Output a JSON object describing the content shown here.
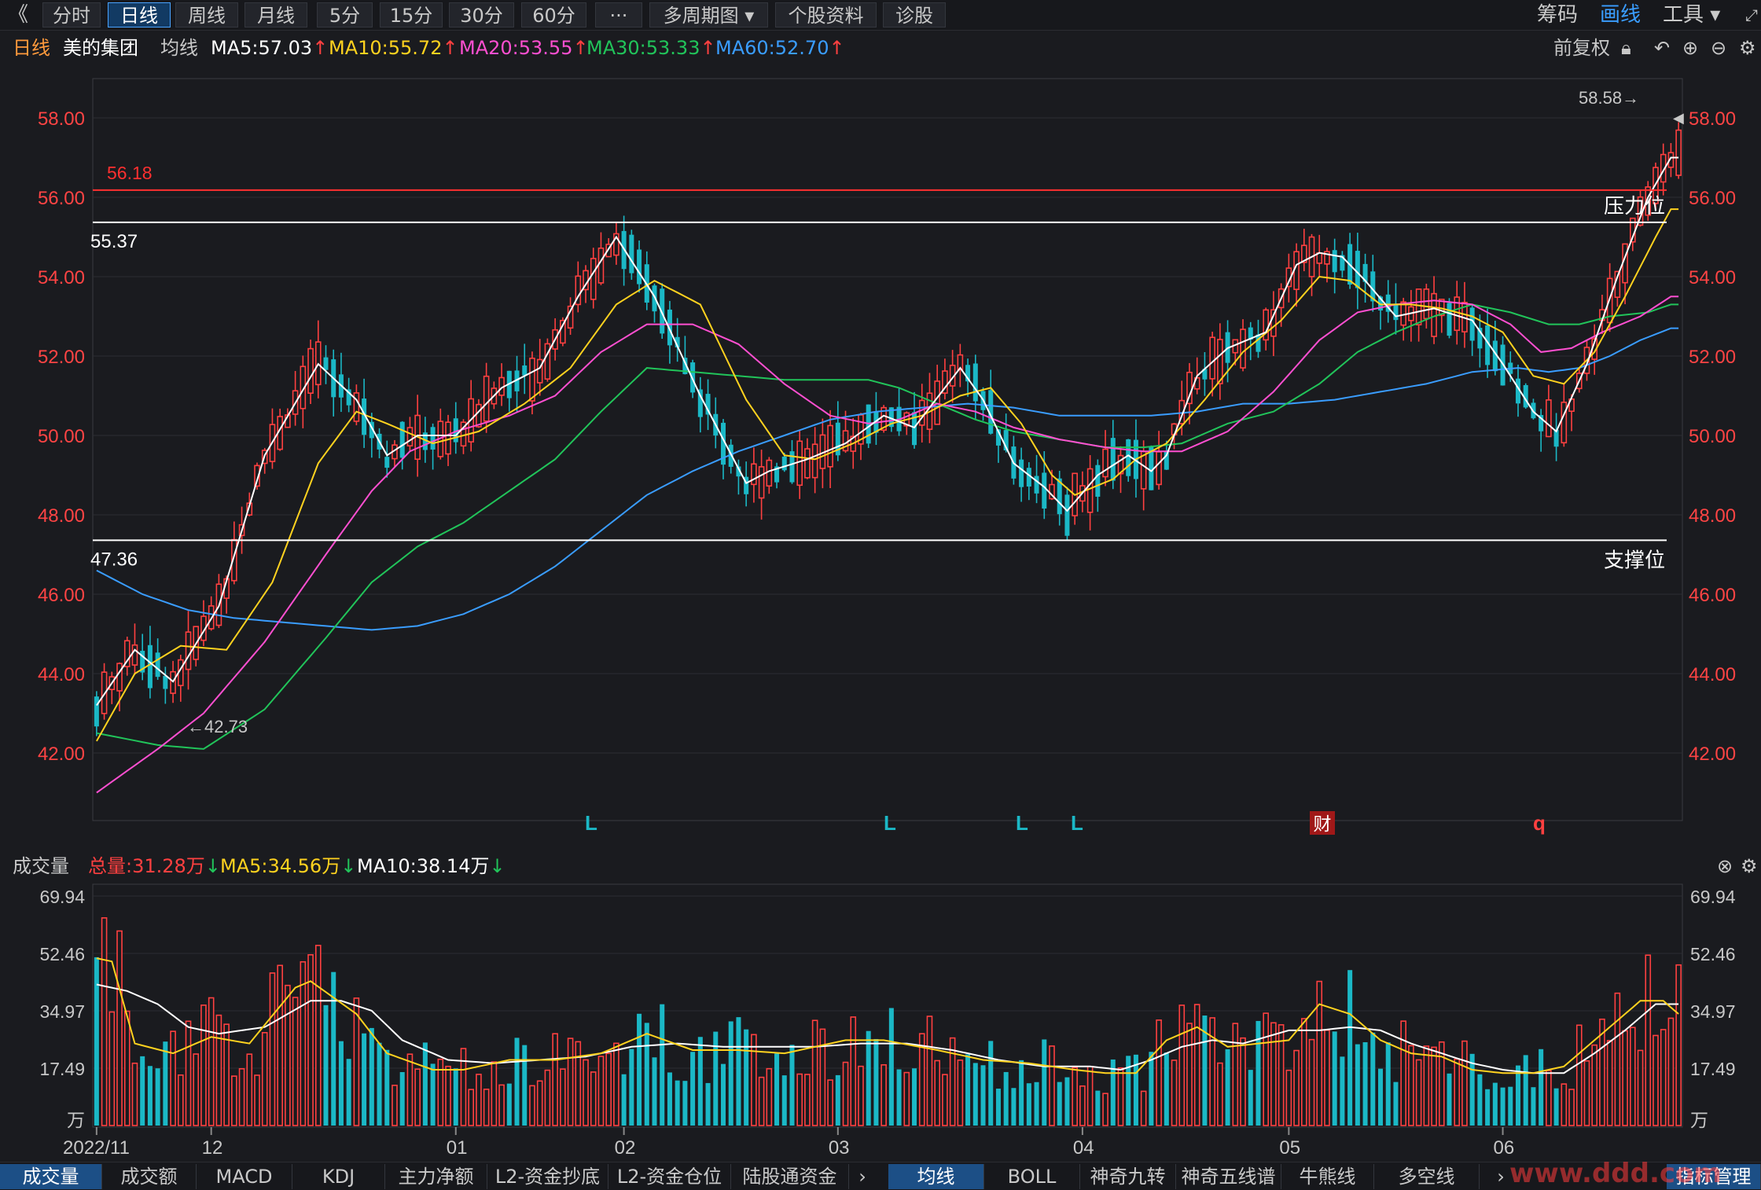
{
  "toolbar": {
    "back": "《",
    "tabs": [
      "分时",
      "日线",
      "周线",
      "月线",
      "5分",
      "15分",
      "30分",
      "60分",
      "···",
      "多周期图 ▾",
      "个股资料",
      "诊股"
    ],
    "active_tab": 1,
    "right_items": [
      "筹码",
      "画线",
      "工具 ▾"
    ]
  },
  "info": {
    "period": "日线",
    "stock_name": "美的集团",
    "indicator": "均线",
    "ma5": "MA5:57.03",
    "ma10": "MA10:55.72",
    "ma20": "MA20:53.55",
    "ma30": "MA30:53.33",
    "ma60": "MA60:52.70",
    "arrow_up": "↑",
    "adjust": "前复权"
  },
  "volume_info": {
    "label": "成交量",
    "total": "总量:31.28万",
    "ma5": "MA5:34.56万",
    "ma10": "MA10:38.14万",
    "arrow_down": "↓"
  },
  "bottom_tabs_left": [
    "成交量",
    "成交额",
    "MACD",
    "KDJ",
    "主力净额",
    "L2-资金抄底",
    "L2-资金仓位",
    "陆股通资金"
  ],
  "bottom_tabs_right": [
    "均线",
    "BOLL",
    "神奇九转",
    "神奇五线谱",
    "牛熊线",
    "多空线"
  ],
  "bottom_right": "指标管理",
  "watermark": "www.ddd.com",
  "colors": {
    "up": "#ff4040",
    "down": "#1bb8c6",
    "ma5": "#ffffff",
    "ma10": "#ffd21f",
    "ma20": "#ff4fd1",
    "ma30": "#21c45a",
    "ma60": "#3a9dff",
    "axis_text": "#ff4444",
    "resistance": "#ff3030",
    "support": "#ffffff"
  },
  "chart_data": {
    "type": "candlestick",
    "price_axis": {
      "ticks": [
        "58.00",
        "56.00",
        "54.00",
        "52.00",
        "50.00",
        "48.00",
        "46.00",
        "44.00",
        "42.00"
      ],
      "range": [
        40.6,
        58.8
      ]
    },
    "x_labels": [
      {
        "label": "2022/11",
        "index": 0
      },
      {
        "label": "12",
        "index": 15
      },
      {
        "label": "01",
        "index": 47
      },
      {
        "label": "02",
        "index": 69
      },
      {
        "label": "03",
        "index": 97
      },
      {
        "label": "04",
        "index": 129
      },
      {
        "label": "05",
        "index": 156
      },
      {
        "label": "06",
        "index": 184
      }
    ],
    "annotations": {
      "high": "58.58→",
      "low": "←42.73",
      "line_5618": "56.18",
      "line_5537": "55.37",
      "line_4736": "47.36",
      "resistance_label": "压力位",
      "support_label": "支撑位",
      "markers": [
        "L",
        "L",
        "L",
        "L",
        "财",
        "q"
      ]
    },
    "hlines": [
      56.18,
      55.37,
      47.36
    ],
    "volume_axis": {
      "ticks": [
        "69.94",
        "52.46",
        "34.97",
        "17.49",
        "万"
      ],
      "max": 72
    },
    "ma_keypoints": {
      "ma5": [
        [
          0,
          43.2
        ],
        [
          5,
          44.6
        ],
        [
          10,
          43.8
        ],
        [
          16,
          45.7
        ],
        [
          22,
          49.5
        ],
        [
          29,
          51.8
        ],
        [
          34,
          50.9
        ],
        [
          38,
          49.5
        ],
        [
          42,
          50.0
        ],
        [
          47,
          50.0
        ],
        [
          53,
          51.2
        ],
        [
          58,
          51.7
        ],
        [
          63,
          53.5
        ],
        [
          68,
          55.0
        ],
        [
          73,
          53.5
        ],
        [
          79,
          51.0
        ],
        [
          85,
          48.8
        ],
        [
          88,
          49.1
        ],
        [
          93,
          49.4
        ],
        [
          98,
          49.8
        ],
        [
          103,
          50.5
        ],
        [
          107,
          50.2
        ],
        [
          113,
          51.7
        ],
        [
          116,
          50.9
        ],
        [
          120,
          49.3
        ],
        [
          124,
          48.7
        ],
        [
          127,
          48.1
        ],
        [
          131,
          49.0
        ],
        [
          135,
          49.5
        ],
        [
          138,
          49.1
        ],
        [
          140,
          49.5
        ],
        [
          144,
          51.5
        ],
        [
          148,
          52.2
        ],
        [
          153,
          52.6
        ],
        [
          157,
          54.3
        ],
        [
          160,
          54.6
        ],
        [
          163,
          54.5
        ],
        [
          166,
          53.9
        ],
        [
          170,
          53.0
        ],
        [
          175,
          53.2
        ],
        [
          180,
          52.9
        ],
        [
          184,
          51.8
        ],
        [
          188,
          50.6
        ],
        [
          191,
          50.1
        ],
        [
          195,
          51.8
        ],
        [
          199,
          54.0
        ],
        [
          203,
          56.0
        ],
        [
          206,
          57.0
        ]
      ],
      "ma10": [
        [
          0,
          42.3
        ],
        [
          5,
          44.0
        ],
        [
          11,
          44.7
        ],
        [
          17,
          44.6
        ],
        [
          23,
          46.3
        ],
        [
          29,
          49.3
        ],
        [
          34,
          50.6
        ],
        [
          38,
          50.3
        ],
        [
          44,
          49.8
        ],
        [
          50,
          50.1
        ],
        [
          56,
          50.8
        ],
        [
          62,
          51.7
        ],
        [
          68,
          53.3
        ],
        [
          73,
          53.9
        ],
        [
          79,
          53.3
        ],
        [
          85,
          50.9
        ],
        [
          90,
          49.5
        ],
        [
          94,
          49.4
        ],
        [
          99,
          49.8
        ],
        [
          104,
          50.3
        ],
        [
          108,
          50.5
        ],
        [
          113,
          51.0
        ],
        [
          117,
          51.2
        ],
        [
          121,
          50.3
        ],
        [
          125,
          49.0
        ],
        [
          128,
          48.5
        ],
        [
          133,
          48.9
        ],
        [
          136,
          49.4
        ],
        [
          140,
          49.8
        ],
        [
          145,
          50.9
        ],
        [
          150,
          52.1
        ],
        [
          155,
          52.9
        ],
        [
          160,
          54.0
        ],
        [
          164,
          53.9
        ],
        [
          168,
          53.3
        ],
        [
          172,
          53.3
        ],
        [
          176,
          53.2
        ],
        [
          180,
          53.0
        ],
        [
          184,
          52.6
        ],
        [
          188,
          51.5
        ],
        [
          192,
          51.3
        ],
        [
          196,
          52.1
        ],
        [
          200,
          53.5
        ],
        [
          204,
          55.0
        ],
        [
          206,
          55.7
        ]
      ],
      "ma20": [
        [
          0,
          41.0
        ],
        [
          8,
          42.1
        ],
        [
          14,
          43.0
        ],
        [
          22,
          44.8
        ],
        [
          30,
          47.0
        ],
        [
          36,
          48.6
        ],
        [
          41,
          49.6
        ],
        [
          47,
          50.1
        ],
        [
          54,
          50.5
        ],
        [
          60,
          51.0
        ],
        [
          66,
          52.1
        ],
        [
          72,
          52.8
        ],
        [
          78,
          52.8
        ],
        [
          84,
          52.3
        ],
        [
          90,
          51.3
        ],
        [
          96,
          50.5
        ],
        [
          101,
          50.3
        ],
        [
          105,
          50.4
        ],
        [
          110,
          50.8
        ],
        [
          115,
          50.6
        ],
        [
          120,
          50.2
        ],
        [
          126,
          49.9
        ],
        [
          132,
          49.7
        ],
        [
          137,
          49.6
        ],
        [
          142,
          49.6
        ],
        [
          148,
          50.1
        ],
        [
          154,
          51.1
        ],
        [
          160,
          52.4
        ],
        [
          165,
          53.1
        ],
        [
          170,
          53.3
        ],
        [
          175,
          53.4
        ],
        [
          180,
          53.3
        ],
        [
          185,
          52.8
        ],
        [
          189,
          52.1
        ],
        [
          193,
          52.2
        ],
        [
          197,
          52.6
        ],
        [
          202,
          53.0
        ],
        [
          206,
          53.5
        ]
      ],
      "ma30": [
        [
          0,
          42.5
        ],
        [
          8,
          42.2
        ],
        [
          14,
          42.1
        ],
        [
          22,
          43.1
        ],
        [
          30,
          44.9
        ],
        [
          36,
          46.3
        ],
        [
          42,
          47.2
        ],
        [
          48,
          47.8
        ],
        [
          54,
          48.6
        ],
        [
          60,
          49.4
        ],
        [
          66,
          50.6
        ],
        [
          72,
          51.7
        ],
        [
          78,
          51.6
        ],
        [
          84,
          51.5
        ],
        [
          90,
          51.4
        ],
        [
          96,
          51.4
        ],
        [
          101,
          51.4
        ],
        [
          105,
          51.2
        ],
        [
          110,
          50.8
        ],
        [
          115,
          50.4
        ],
        [
          120,
          50.1
        ],
        [
          126,
          49.9
        ],
        [
          132,
          49.7
        ],
        [
          137,
          49.7
        ],
        [
          142,
          49.8
        ],
        [
          148,
          50.3
        ],
        [
          154,
          50.6
        ],
        [
          160,
          51.3
        ],
        [
          165,
          52.1
        ],
        [
          170,
          52.6
        ],
        [
          175,
          53.0
        ],
        [
          180,
          53.3
        ],
        [
          185,
          53.1
        ],
        [
          190,
          52.8
        ],
        [
          194,
          52.8
        ],
        [
          198,
          53.0
        ],
        [
          203,
          53.1
        ],
        [
          206,
          53.3
        ]
      ],
      "ma60": [
        [
          0,
          46.6
        ],
        [
          6,
          46.0
        ],
        [
          12,
          45.6
        ],
        [
          18,
          45.4
        ],
        [
          24,
          45.3
        ],
        [
          30,
          45.2
        ],
        [
          36,
          45.1
        ],
        [
          42,
          45.2
        ],
        [
          48,
          45.5
        ],
        [
          54,
          46.0
        ],
        [
          60,
          46.7
        ],
        [
          66,
          47.6
        ],
        [
          72,
          48.5
        ],
        [
          78,
          49.1
        ],
        [
          84,
          49.6
        ],
        [
          90,
          50.0
        ],
        [
          96,
          50.4
        ],
        [
          102,
          50.6
        ],
        [
          108,
          50.7
        ],
        [
          114,
          50.8
        ],
        [
          120,
          50.7
        ],
        [
          126,
          50.5
        ],
        [
          132,
          50.5
        ],
        [
          138,
          50.5
        ],
        [
          144,
          50.6
        ],
        [
          150,
          50.8
        ],
        [
          156,
          50.8
        ],
        [
          162,
          50.9
        ],
        [
          168,
          51.1
        ],
        [
          174,
          51.3
        ],
        [
          180,
          51.6
        ],
        [
          186,
          51.7
        ],
        [
          190,
          51.6
        ],
        [
          194,
          51.7
        ],
        [
          198,
          52.0
        ],
        [
          202,
          52.4
        ],
        [
          206,
          52.7
        ]
      ]
    },
    "vol_ma5_keypoints": [
      [
        0,
        51
      ],
      [
        2,
        50
      ],
      [
        5,
        25
      ],
      [
        10,
        22
      ],
      [
        15,
        27
      ],
      [
        20,
        25
      ],
      [
        26,
        42
      ],
      [
        28,
        44
      ],
      [
        34,
        34
      ],
      [
        38,
        22
      ],
      [
        44,
        17
      ],
      [
        48,
        17
      ],
      [
        54,
        20
      ],
      [
        60,
        20
      ],
      [
        66,
        22
      ],
      [
        72,
        28
      ],
      [
        78,
        23
      ],
      [
        84,
        23
      ],
      [
        90,
        22
      ],
      [
        98,
        26
      ],
      [
        103,
        26
      ],
      [
        110,
        23
      ],
      [
        116,
        20
      ],
      [
        122,
        19
      ],
      [
        128,
        17
      ],
      [
        132,
        16
      ],
      [
        136,
        16
      ],
      [
        140,
        26
      ],
      [
        144,
        30
      ],
      [
        148,
        24
      ],
      [
        152,
        25
      ],
      [
        156,
        26
      ],
      [
        160,
        37
      ],
      [
        164,
        34
      ],
      [
        168,
        26
      ],
      [
        172,
        22
      ],
      [
        176,
        21
      ],
      [
        180,
        17
      ],
      [
        184,
        16
      ],
      [
        188,
        16
      ],
      [
        192,
        18
      ],
      [
        196,
        26
      ],
      [
        199,
        32
      ],
      [
        202,
        38
      ],
      [
        205,
        38
      ],
      [
        207,
        34
      ]
    ],
    "vol_ma10_keypoints": [
      [
        0,
        43
      ],
      [
        4,
        41
      ],
      [
        8,
        37
      ],
      [
        12,
        30
      ],
      [
        16,
        28
      ],
      [
        22,
        30
      ],
      [
        28,
        38
      ],
      [
        32,
        38
      ],
      [
        36,
        35
      ],
      [
        40,
        26
      ],
      [
        46,
        20
      ],
      [
        52,
        19
      ],
      [
        58,
        20
      ],
      [
        64,
        21
      ],
      [
        70,
        24
      ],
      [
        76,
        25
      ],
      [
        82,
        24
      ],
      [
        88,
        24
      ],
      [
        94,
        24
      ],
      [
        100,
        25
      ],
      [
        106,
        25
      ],
      [
        112,
        23
      ],
      [
        118,
        20
      ],
      [
        124,
        18
      ],
      [
        130,
        18
      ],
      [
        134,
        17
      ],
      [
        138,
        20
      ],
      [
        142,
        24
      ],
      [
        146,
        26
      ],
      [
        150,
        25
      ],
      [
        156,
        29
      ],
      [
        160,
        29
      ],
      [
        164,
        30
      ],
      [
        168,
        29
      ],
      [
        172,
        25
      ],
      [
        176,
        22
      ],
      [
        180,
        19
      ],
      [
        184,
        17
      ],
      [
        188,
        16
      ],
      [
        192,
        16
      ],
      [
        196,
        22
      ],
      [
        200,
        29
      ],
      [
        204,
        37
      ],
      [
        207,
        37
      ]
    ]
  }
}
